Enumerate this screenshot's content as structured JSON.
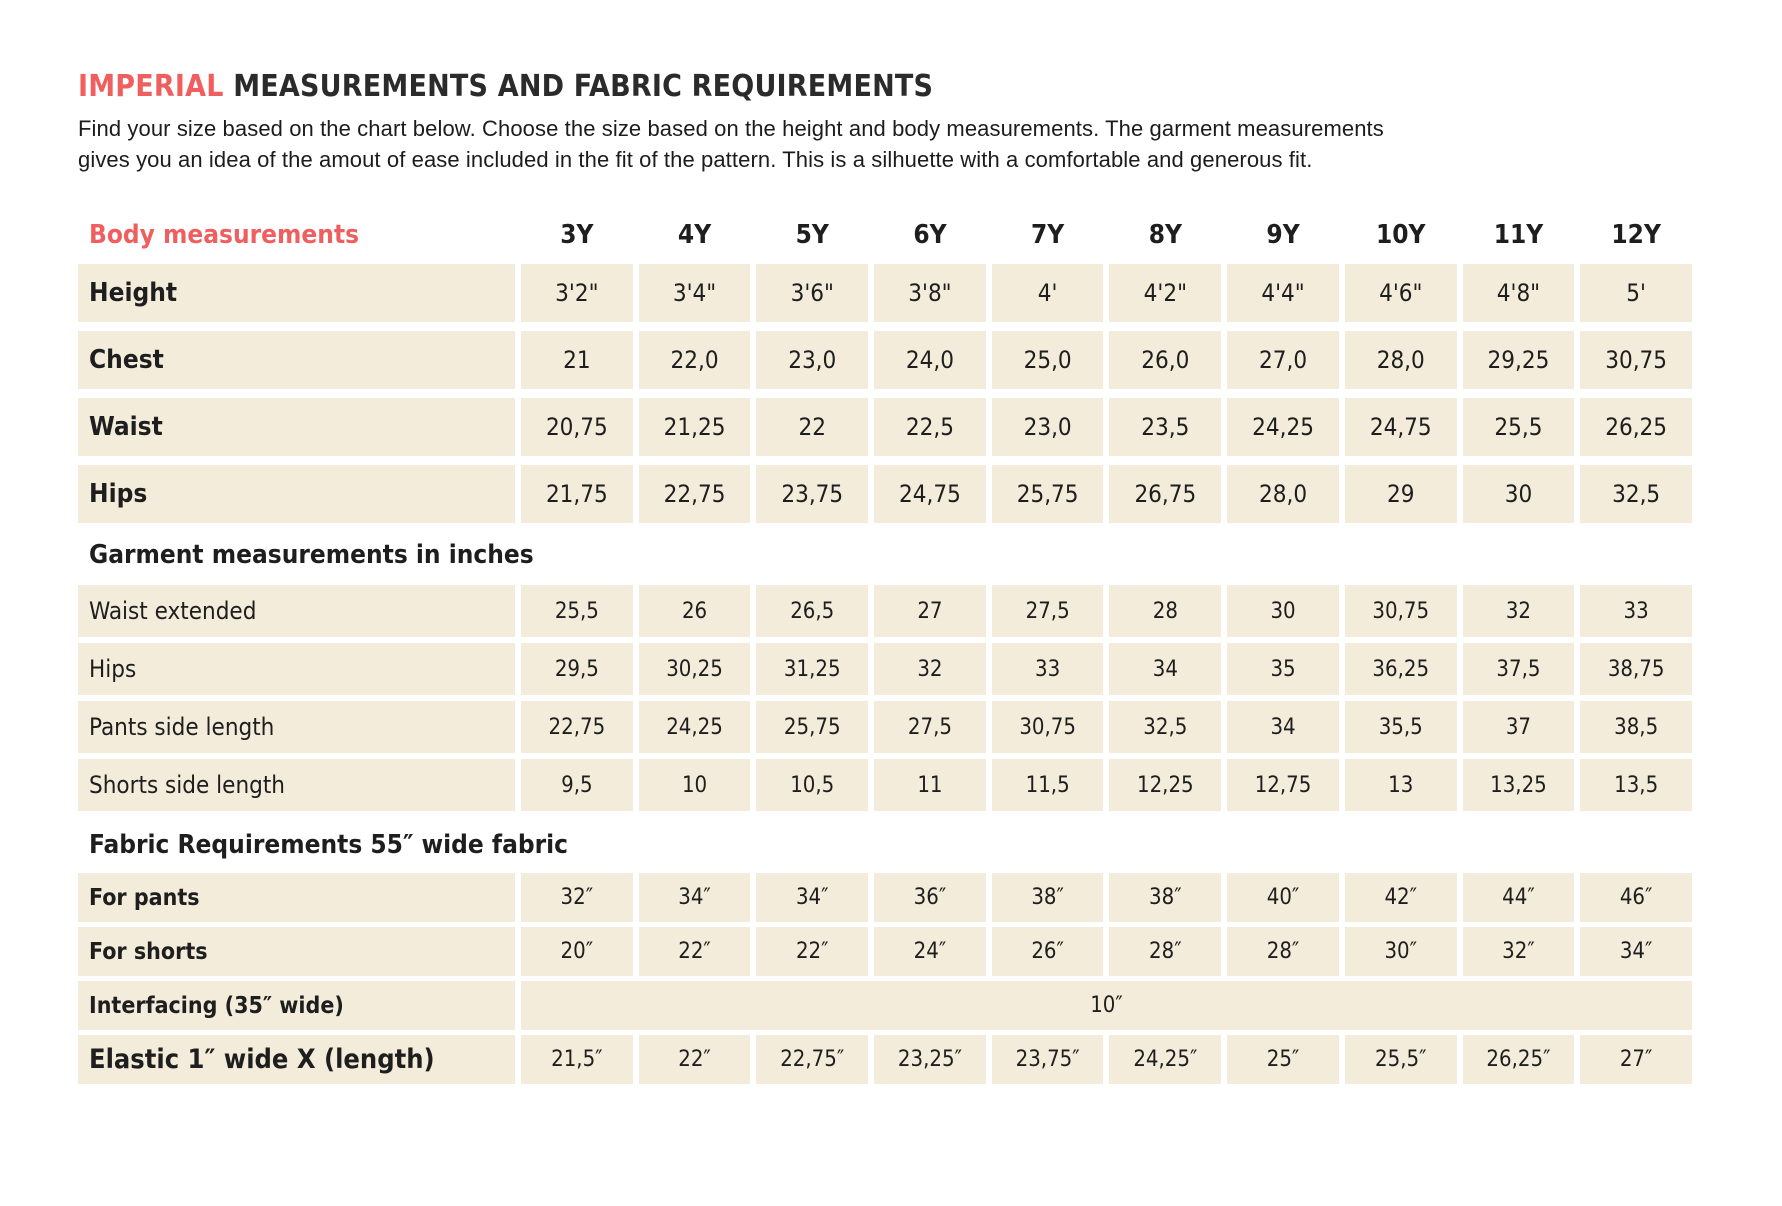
{
  "colors": {
    "accent": "#ef5f5f",
    "row_background": "#f3ecda",
    "text": "#1e1e1e"
  },
  "page": {
    "title_highlight": "IMPERIAL",
    "title_rest": " MEASUREMENTS AND FABRIC REQUIREMENTS",
    "intro_line1": "Find your size based on the chart below. Choose the size based on the height and body measurements. The garment measurements",
    "intro_line2": "gives you an idea of the amout of ease included in the fit of the pattern. This is a silhuette with a comfortable and generous fit."
  },
  "table": {
    "header_label": "Body measurements",
    "sizes": [
      "3Y",
      "4Y",
      "5Y",
      "6Y",
      "7Y",
      "8Y",
      "9Y",
      "10Y",
      "11Y",
      "12Y"
    ],
    "body_rows": [
      {
        "label": "Height",
        "values": [
          "3'2\"",
          "3'4\"",
          "3'6\"",
          "3'8\"",
          "4'",
          "4'2\"",
          "4'4\"",
          "4'6\"",
          "4'8\"",
          "5'"
        ]
      },
      {
        "label": "Chest",
        "values": [
          "21",
          "22,0",
          "23,0",
          "24,0",
          "25,0",
          "26,0",
          "27,0",
          "28,0",
          "29,25",
          "30,75"
        ]
      },
      {
        "label": "Waist",
        "values": [
          "20,75",
          "21,25",
          "22",
          "22,5",
          "23,0",
          "23,5",
          "24,25",
          "24,75",
          "25,5",
          "26,25"
        ]
      },
      {
        "label": "Hips",
        "values": [
          "21,75",
          "22,75",
          "23,75",
          "24,75",
          "25,75",
          "26,75",
          "28,0",
          "29",
          "30",
          "32,5"
        ]
      }
    ],
    "garment_section_title": "Garment measurements in inches",
    "garment_rows": [
      {
        "label": "Waist extended",
        "values": [
          "25,5",
          "26",
          "26,5",
          "27",
          "27,5",
          "28",
          "30",
          "30,75",
          "32",
          "33"
        ]
      },
      {
        "label": "Hips",
        "values": [
          "29,5",
          "30,25",
          "31,25",
          "32",
          "33",
          "34",
          "35",
          "36,25",
          "37,5",
          "38,75"
        ]
      },
      {
        "label": "Pants side length",
        "values": [
          "22,75",
          "24,25",
          "25,75",
          "27,5",
          "30,75",
          "32,5",
          "34",
          "35,5",
          "37",
          "38,5"
        ]
      },
      {
        "label": "Shorts side length",
        "values": [
          "9,5",
          "10",
          "10,5",
          "11",
          "11,5",
          "12,25",
          "12,75",
          "13",
          "13,25",
          "13,5"
        ]
      }
    ],
    "fabric_section_title": "Fabric Requirements 55″ wide fabric",
    "fabric_rows": [
      {
        "label": "For pants",
        "values": [
          "32″",
          "34″",
          "34″",
          "36″",
          "38″",
          "38″",
          "40″",
          "42″",
          "44″",
          "46″"
        ]
      },
      {
        "label": "For shorts",
        "values": [
          "20″",
          "22″",
          "22″",
          "24″",
          "26″",
          "28″",
          "28″",
          "30″",
          "32″",
          "34″"
        ]
      }
    ],
    "interfacing_row": {
      "label": "Interfacing (35″ wide)",
      "value": "10″"
    },
    "elastic_row": {
      "label": "Elastic 1″ wide X (length)",
      "values": [
        "21,5″",
        "22″",
        "22,75″",
        "23,25″",
        "23,75″",
        "24,25″",
        "25″",
        "25,5″",
        "26,25″",
        "27″"
      ]
    }
  }
}
